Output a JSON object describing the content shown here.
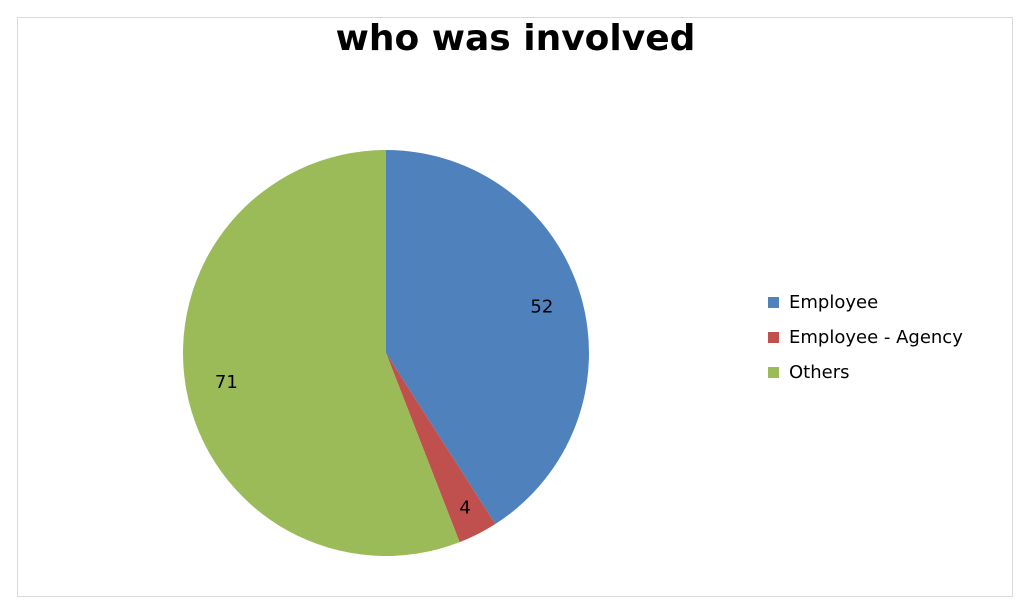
{
  "chart_data": {
    "type": "pie",
    "title": "who was involved",
    "categories": [
      "Employee",
      "Employee - Agency",
      "Others"
    ],
    "values": [
      52,
      4,
      71
    ],
    "colors": [
      "#4F81BD",
      "#C0504D",
      "#9BBB59"
    ],
    "data_labels": [
      "52",
      "4",
      "71"
    ],
    "legend_position": "right",
    "start_angle": "12 o'clock",
    "direction": "clockwise"
  }
}
